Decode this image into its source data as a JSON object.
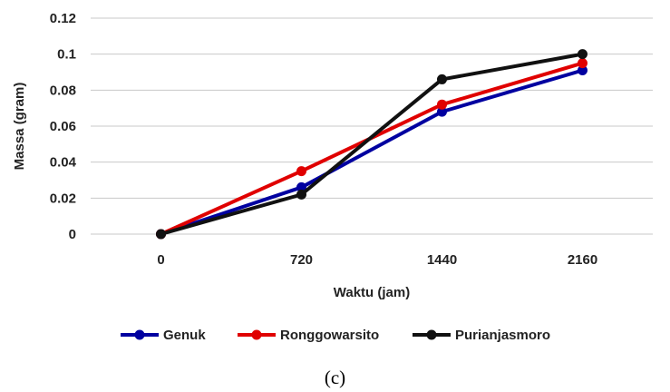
{
  "chart_data": {
    "type": "line",
    "categories": [
      "0",
      "720",
      "1440",
      "2160"
    ],
    "series": [
      {
        "name": "Genuk",
        "color": "#0000a0",
        "values": [
          0,
          0.026,
          0.068,
          0.091
        ]
      },
      {
        "name": "Ronggowarsito",
        "color": "#e00000",
        "values": [
          0,
          0.035,
          0.072,
          0.095
        ]
      },
      {
        "name": "Purianjasmoro",
        "color": "#111111",
        "values": [
          0,
          0.022,
          0.086,
          0.1
        ]
      }
    ],
    "xlabel": "Waktu (jam)",
    "ylabel": "Massa (gram)",
    "ylim": [
      0,
      0.12
    ],
    "yticks": [
      "0",
      "0.02",
      "0.04",
      "0.06",
      "0.08",
      "0.1",
      "0.12"
    ],
    "grid": true,
    "legend": "bottom"
  },
  "caption": "(c)"
}
